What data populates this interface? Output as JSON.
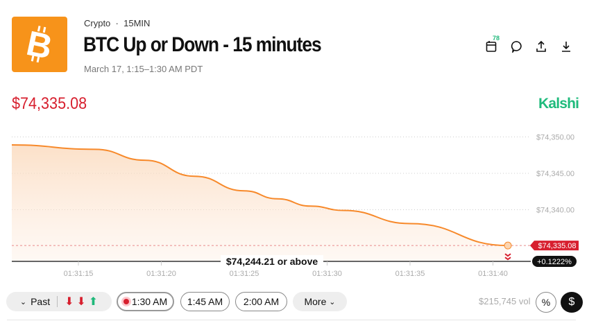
{
  "header": {
    "category": "Crypto",
    "separator": "·",
    "frequency": "15MIN",
    "title": "BTC Up or Down - 15 minutes",
    "date": "March 17, 1:15–1:30 AM PDT",
    "calendar_badge": "78",
    "brand": "Kalshi",
    "icons": [
      "calendar-icon",
      "comment-icon",
      "share-icon",
      "download-icon"
    ]
  },
  "price": "$74,335.08",
  "colors": {
    "line": "#f7892a",
    "price": "#d71f2e",
    "brand": "#1fbb7c",
    "logo": "#f7931a"
  },
  "chart_data": {
    "type": "area",
    "x": [
      "01:31:11",
      "01:31:16",
      "01:31:19",
      "01:31:22",
      "01:31:25",
      "01:31:27",
      "01:31:29",
      "01:31:31",
      "01:31:35",
      "01:31:40.9"
    ],
    "y": [
      74348.9,
      74348.3,
      74346.8,
      74344.6,
      74342.6,
      74341.5,
      74340.5,
      74339.9,
      74338.1,
      74335.08
    ],
    "ylim": [
      74333,
      74351
    ],
    "yticks": [
      "$74,350.00",
      "$74,345.00",
      "$74,340.00"
    ],
    "ytick_values": [
      74350,
      74345,
      74340
    ],
    "xticks": [
      "01:31:15",
      "01:31:20",
      "01:31:25",
      "01:31:30",
      "01:31:35",
      "01:31:40"
    ],
    "current_label": "$74,335.08",
    "change_label": "+0.1222%",
    "strike_label": "$74,244.21 or above",
    "grid": true
  },
  "controls": {
    "past": "Past",
    "past_results": [
      "down",
      "down",
      "up"
    ],
    "times": [
      "1:30 AM",
      "1:45 AM",
      "2:00 AM"
    ],
    "more": "More",
    "volume": "$215,745 vol",
    "percent": "%",
    "dollar": "$"
  }
}
